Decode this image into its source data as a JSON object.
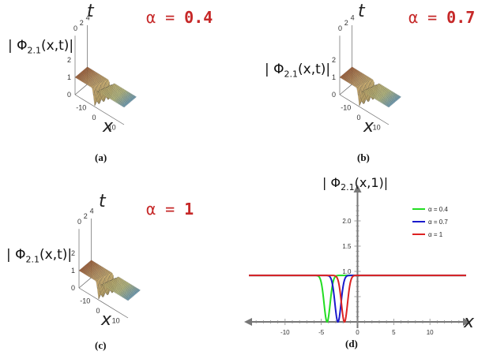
{
  "panels": [
    {
      "y_label": "| Φ",
      "y_sub": "2.1",
      "y_tail": "(x,t)|",
      "t_label": "t",
      "x_label": "x",
      "alpha_text": "α = ",
      "alpha_value": "0.4",
      "caption": "(a)",
      "t_ticks": [
        "4",
        "2",
        "0"
      ],
      "z_ticks": [
        "2",
        "1",
        "0"
      ],
      "x_ticks": [
        "-10",
        "0",
        "10"
      ]
    },
    {
      "y_label": "| Φ",
      "y_sub": "2.1",
      "y_tail": "(x,t)|",
      "t_label": "t",
      "x_label": "x",
      "alpha_text": "α = ",
      "alpha_value": "0.7",
      "caption": "(b)",
      "t_ticks": [
        "4",
        "2",
        "0"
      ],
      "z_ticks": [
        "2",
        "1",
        "0"
      ],
      "x_ticks": [
        "-10",
        "0",
        "10"
      ]
    },
    {
      "y_label": "| Φ",
      "y_sub": "2.1",
      "y_tail": "(x,t)|",
      "t_label": "t",
      "x_label": "x",
      "alpha_text": "α = ",
      "alpha_value": "1",
      "caption": "(c)",
      "t_ticks": [
        "4",
        "2",
        "0"
      ],
      "z_ticks": [
        "2",
        "1",
        "0"
      ],
      "x_ticks": [
        "-10",
        "0",
        "10"
      ]
    }
  ],
  "chart_data": {
    "type": "line",
    "title": "| Φ2.1(x,1)|",
    "xlabel": "x",
    "caption": "(d)",
    "xlim": [
      -15,
      15
    ],
    "ylim": [
      0,
      2.5
    ],
    "x_ticks": [
      "-10",
      "-5",
      "0",
      "5",
      "10"
    ],
    "y_ticks": [
      "1.0",
      "1.5",
      "2.0"
    ],
    "baseline": 0.92,
    "series": [
      {
        "name": "α = 0.4",
        "color": "#22dd22",
        "dip_center": -4.2,
        "dip_min": 0.0
      },
      {
        "name": "α = 0.7",
        "color": "#1a1acc",
        "dip_center": -2.7,
        "dip_min": 0.0
      },
      {
        "name": "α = 1",
        "color": "#dd2222",
        "dip_center": -1.8,
        "dip_min": 0.0
      }
    ],
    "legend": "top-right"
  }
}
